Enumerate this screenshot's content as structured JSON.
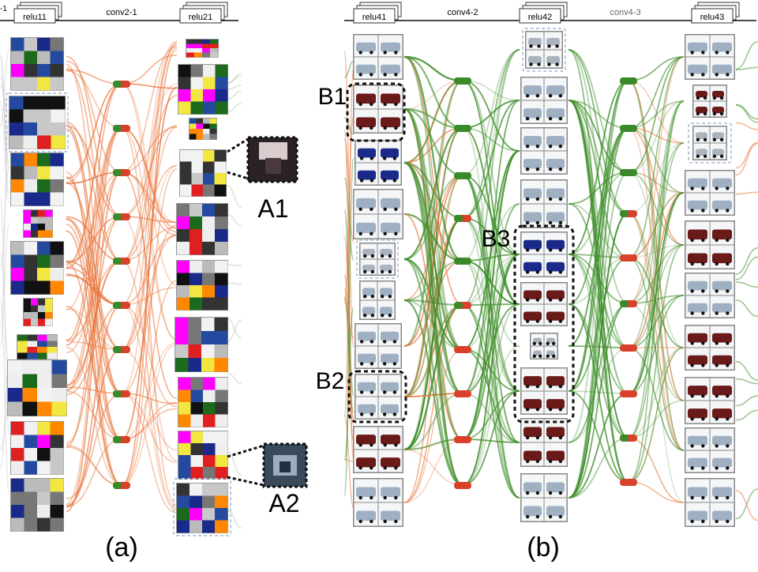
{
  "panels": [
    {
      "caption": "(a)",
      "lines": [
        {
          "tab": "relu11",
          "end_label": "-1"
        },
        {
          "label": "conv2-1"
        },
        {
          "tab": "relu21"
        }
      ],
      "callouts": [
        "A1",
        "A2"
      ],
      "thumb_tint": "#2b2b33"
    },
    {
      "caption": "(b)",
      "lines": [
        {
          "tab": "relu41"
        },
        {
          "label": "conv4-2"
        },
        {
          "tab": "relu42"
        },
        {
          "label": "conv4-3"
        },
        {
          "tab": "relu43"
        }
      ],
      "callouts": [
        "B1",
        "B2",
        "B3"
      ],
      "thumb_tint": "#8c9cae"
    }
  ],
  "colors": {
    "orange_edge": "#e8743a",
    "green_edge": "#3e8e2a",
    "node_green": "#3a8a2a",
    "node_red": "#d9412a",
    "dashed_box": "#b8c8de",
    "line": "#111111"
  }
}
